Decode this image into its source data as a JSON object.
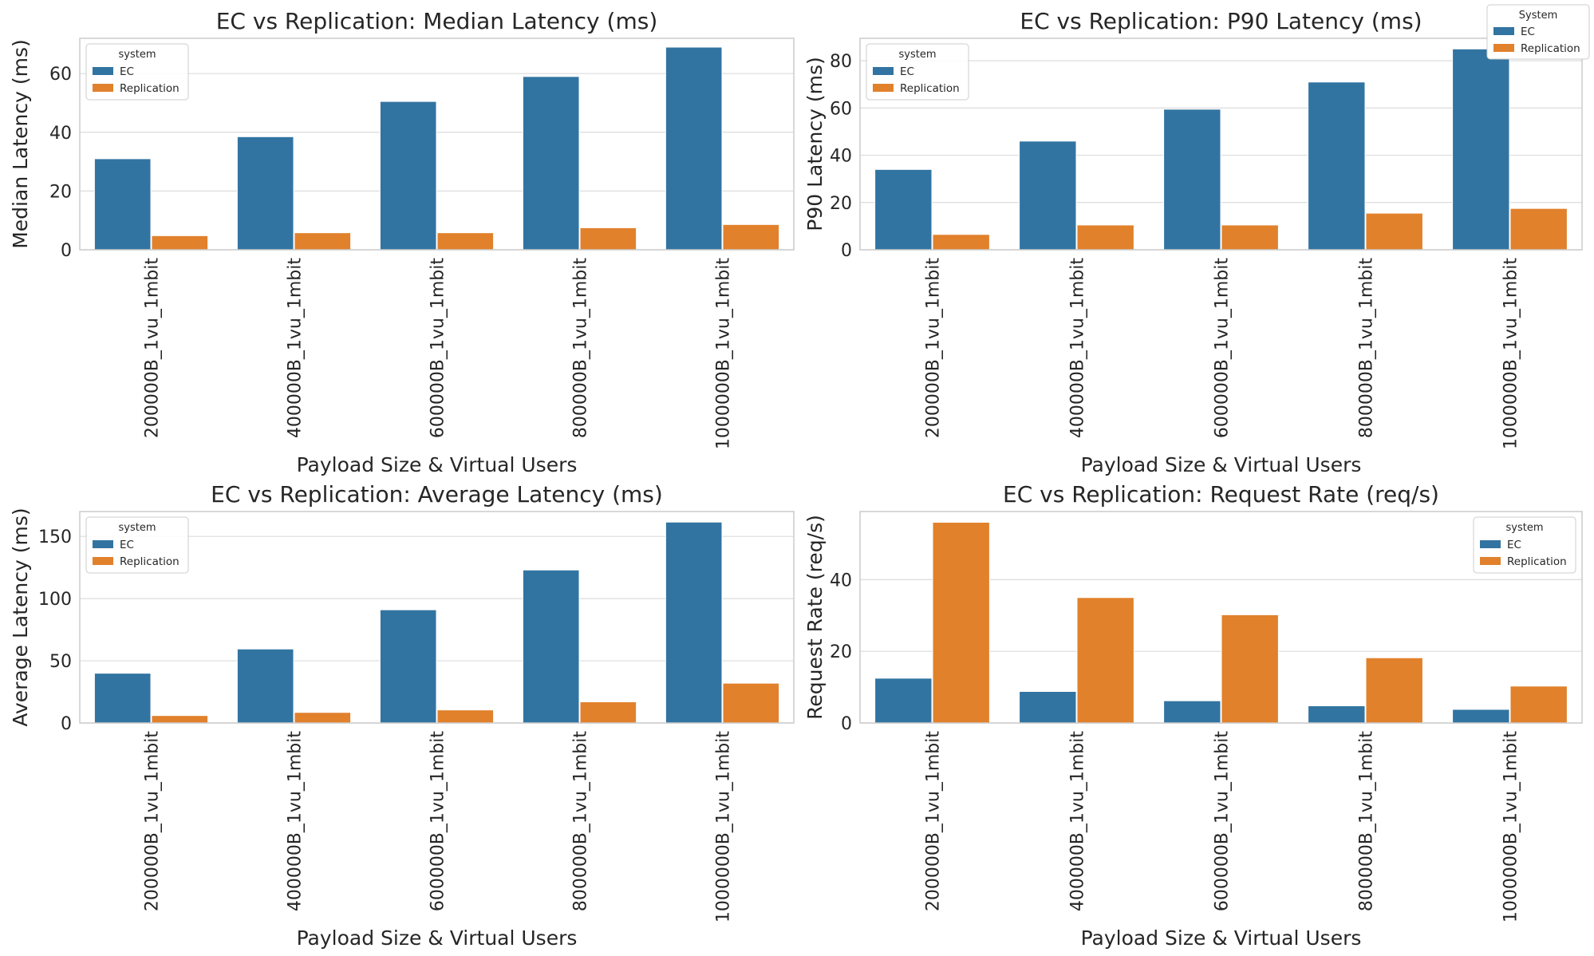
{
  "figure_legend": {
    "title": "System",
    "entries": [
      "EC",
      "Replication"
    ]
  },
  "colors": {
    "EC": "#3274a1",
    "Replication": "#e1812c",
    "grid": "#dcdcdc",
    "spine": "#cccccc",
    "text": "#262626"
  },
  "chart_data": [
    {
      "type": "bar",
      "title": "EC vs Replication: Median Latency (ms)",
      "xlabel": "Payload Size & Virtual Users",
      "ylabel": "Median Latency (ms)",
      "categories": [
        "200000B_1vu_1mbit",
        "400000B_1vu_1mbit",
        "600000B_1vu_1mbit",
        "800000B_1vu_1mbit",
        "1000000B_1vu_1mbit"
      ],
      "series": [
        {
          "name": "EC",
          "values": [
            31,
            38.5,
            50.5,
            59,
            69
          ]
        },
        {
          "name": "Replication",
          "values": [
            4.8,
            5.8,
            5.8,
            7.5,
            8.6
          ]
        }
      ],
      "ylim": [
        0,
        72
      ],
      "yticks": [
        0,
        20,
        40,
        60
      ],
      "grid": true,
      "legend": {
        "title": "system",
        "position": "upper-left"
      }
    },
    {
      "type": "bar",
      "title": "EC vs Replication: P90 Latency (ms)",
      "xlabel": "Payload Size & Virtual Users",
      "ylabel": "P90 Latency (ms)",
      "categories": [
        "200000B_1vu_1mbit",
        "400000B_1vu_1mbit",
        "600000B_1vu_1mbit",
        "800000B_1vu_1mbit",
        "1000000B_1vu_1mbit"
      ],
      "series": [
        {
          "name": "EC",
          "values": [
            34,
            46,
            59.5,
            71,
            85
          ]
        },
        {
          "name": "Replication",
          "values": [
            6.5,
            10.5,
            10.5,
            15.5,
            17.5
          ]
        }
      ],
      "ylim": [
        0,
        89.5
      ],
      "yticks": [
        0,
        20,
        40,
        60,
        80
      ],
      "grid": true,
      "legend": {
        "title": "system",
        "position": "upper-left"
      }
    },
    {
      "type": "bar",
      "title": "EC vs Replication: Average Latency (ms)",
      "xlabel": "Payload Size & Virtual Users",
      "ylabel": "Average Latency (ms)",
      "categories": [
        "200000B_1vu_1mbit",
        "400000B_1vu_1mbit",
        "600000B_1vu_1mbit",
        "800000B_1vu_1mbit",
        "1000000B_1vu_1mbit"
      ],
      "series": [
        {
          "name": "EC",
          "values": [
            40,
            59.5,
            91,
            123,
            161.5
          ]
        },
        {
          "name": "Replication",
          "values": [
            6,
            8.5,
            10.5,
            17,
            32
          ]
        }
      ],
      "ylim": [
        0,
        170
      ],
      "yticks": [
        0,
        50,
        100,
        150
      ],
      "grid": true,
      "legend": {
        "title": "system",
        "position": "upper-left"
      }
    },
    {
      "type": "bar",
      "title": "EC vs Replication: Request Rate (req/s)",
      "xlabel": "Payload Size & Virtual Users",
      "ylabel": "Request Rate (req/s)",
      "categories": [
        "200000B_1vu_1mbit",
        "400000B_1vu_1mbit",
        "600000B_1vu_1mbit",
        "800000B_1vu_1mbit",
        "1000000B_1vu_1mbit"
      ],
      "series": [
        {
          "name": "EC",
          "values": [
            12.5,
            8.8,
            6.2,
            4.8,
            3.8
          ]
        },
        {
          "name": "Replication",
          "values": [
            56,
            35,
            30.2,
            18.2,
            10.3
          ]
        }
      ],
      "ylim": [
        0,
        59
      ],
      "yticks": [
        0,
        20,
        40
      ],
      "grid": true,
      "legend": {
        "title": "system",
        "position": "upper-right"
      }
    }
  ]
}
